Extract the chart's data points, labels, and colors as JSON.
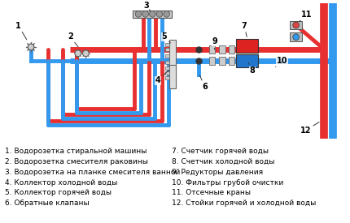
{
  "hot_color": "#e83030",
  "cold_color": "#3399ee",
  "riser_hot_color": "#e83030",
  "riser_cold_color": "#3399ee",
  "grey": "#aaaaaa",
  "dark_grey": "#666666",
  "legend_left": [
    "1. Водорозетка стиральной машины",
    "2. Водорозетка смесителя раковины",
    "3. Водорозетка на планке смесителя ванной",
    "4. Коллектор холодной воды",
    "5. Коллектор горячей воды",
    "6. Обратные клапаны"
  ],
  "legend_right": [
    "7. Счетчик горячей воды",
    "8. Счетчик холодной воды",
    "9. Редукторы давления",
    "10. Фильтры грубой очистки",
    "11. Отсечные краны",
    "12. Стойки горячей и холодной воды"
  ],
  "label_fontsize": 6.5
}
